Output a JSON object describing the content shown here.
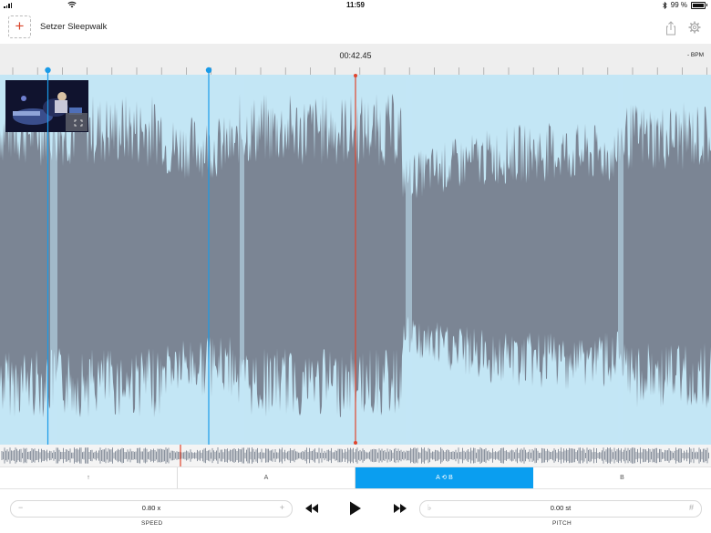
{
  "status_bar": {
    "time": "11:59",
    "battery": "99 %",
    "battery_level": 0.99
  },
  "header": {
    "add_label": "+",
    "song_title": "Setzer Sleepwalk"
  },
  "timeline": {
    "position": "00:42.45",
    "bpm": "- BPM"
  },
  "thumbnail": {
    "icon": "fullscreen-icon"
  },
  "markers": {
    "colors": {
      "marker": "#1a9be8",
      "playhead": "#e0452d"
    }
  },
  "segments": [
    {
      "label": "↑",
      "active": false
    },
    {
      "label": "A",
      "active": false
    },
    {
      "label": "A ⟲ B",
      "active": true
    },
    {
      "label": "B",
      "active": false
    }
  ],
  "speed": {
    "minus": "−",
    "value": "0.80 x",
    "plus": "+",
    "label": "SPEED"
  },
  "pitch": {
    "flat": "♭",
    "value": "0.00 st",
    "sharp": "#",
    "label": "PITCH"
  },
  "colors": {
    "accent": "#0a9ef0",
    "waveform": "#7b8594",
    "loop_bg": "#c3e6f5"
  }
}
